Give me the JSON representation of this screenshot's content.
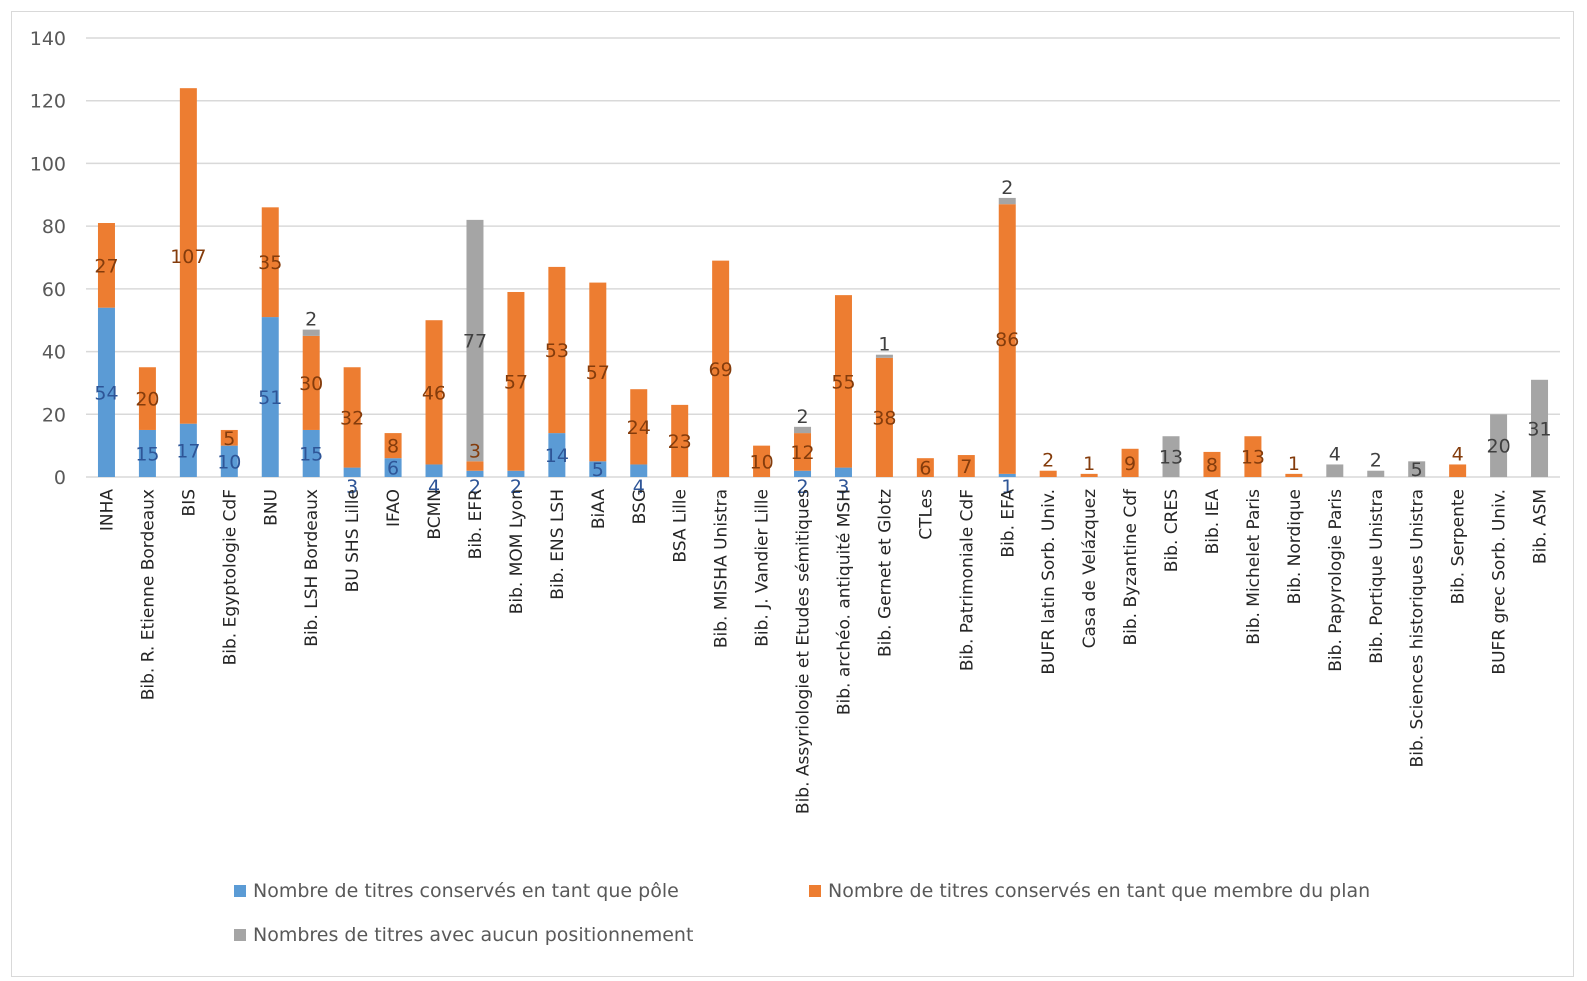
{
  "chart_data": {
    "type": "bar",
    "stacked": true,
    "title": "",
    "xlabel": "",
    "ylabel": "",
    "ylim": [
      0,
      140
    ],
    "yticks": [
      0,
      20,
      40,
      60,
      80,
      100,
      120,
      140
    ],
    "ytick_labels": [
      "0",
      "20",
      "40",
      "60",
      "80",
      "100",
      "120",
      "140"
    ],
    "grid": true,
    "legend_position": "bottom",
    "categories": [
      "INHA",
      "Bib. R. Etienne Bordeaux",
      "BIS",
      "Bib. Egyptologie CdF",
      "BNU",
      "Bib. LSH Bordeaux",
      "BU SHS Lille",
      "IFAO",
      "BCMN",
      "Bib. EFR",
      "Bib. MOM Lyon",
      "Bib. ENS LSH",
      "BiAA",
      "BSG",
      "BSA Lille",
      "Bib. MISHA Unistra",
      "Bib. J. Vandier Lille",
      "Bib. Assyriologie et Etudes sémitiques",
      "Bib. archéo. antiquité MSH",
      "Bib. Gernet et Glotz",
      "CTLes",
      "Bib. Patrimoniale CdF",
      "Bib. EFA",
      "BUFR latin Sorb. Univ.",
      "Casa de Velázquez",
      "Bib. Byzantine Cdf",
      "Bib. CRES",
      "Bib. IEA",
      "Bib. Michelet Paris",
      "Bib. Nordique",
      "Bib. Papyrologie Paris",
      "Bib. Portique Unistra",
      "Bib. Sciences historiques Unistra",
      "Bib. Serpente",
      "BUFR grec Sorb. Univ.",
      "Bib. ASM"
    ],
    "series": [
      {
        "name": "Nombre de titres conservés en tant que pôle",
        "color": "#5b9bd5",
        "label_color": "#2e5597",
        "values": [
          54,
          15,
          17,
          10,
          51,
          15,
          3,
          6,
          4,
          2,
          2,
          14,
          5,
          4,
          0,
          0,
          0,
          2,
          3,
          0,
          0,
          0,
          1,
          0,
          0,
          0,
          0,
          0,
          0,
          0,
          0,
          0,
          0,
          0,
          0,
          0
        ],
        "labels": [
          "54",
          "15",
          "17",
          "10",
          "51",
          "15",
          "3",
          "6",
          "4",
          "2",
          "2",
          "14",
          "5",
          "4",
          "",
          "",
          "",
          "2",
          "3",
          "",
          "",
          "",
          "1",
          "",
          "",
          "",
          "",
          "",
          "",
          "",
          "",
          "",
          "",
          "",
          "",
          ""
        ]
      },
      {
        "name": "Nombre de titres conservés en tant que membre du plan",
        "color": "#ed7d31",
        "label_color": "#843c0c",
        "values": [
          27,
          20,
          107,
          5,
          35,
          30,
          32,
          8,
          46,
          3,
          57,
          53,
          57,
          24,
          23,
          69,
          10,
          12,
          55,
          38,
          6,
          7,
          86,
          2,
          1,
          9,
          0,
          8,
          13,
          1,
          0,
          0,
          0,
          4,
          0,
          0
        ],
        "labels": [
          "27",
          "20",
          "107",
          "5",
          "35",
          "30",
          "32",
          "8",
          "46",
          "3",
          "57",
          "53",
          "57",
          "24",
          "23",
          "69",
          "10",
          "12",
          "55",
          "38",
          "6",
          "7",
          "86",
          "2",
          "1",
          "9",
          "",
          "8",
          "13",
          "1",
          "",
          "",
          "",
          "4",
          "",
          ""
        ]
      },
      {
        "name": "Nombres de titres avec aucun positionnement",
        "color": "#a5a5a5",
        "label_color": "#404040",
        "values": [
          0,
          0,
          0,
          0,
          0,
          2,
          0,
          0,
          0,
          77,
          0,
          0,
          0,
          0,
          0,
          0,
          0,
          2,
          0,
          1,
          0,
          0,
          2,
          0,
          0,
          0,
          13,
          0,
          0,
          0,
          4,
          2,
          5,
          0,
          20,
          31
        ],
        "labels": [
          "",
          "",
          "",
          "",
          "",
          "2",
          "",
          "",
          "",
          "77",
          "",
          "",
          "",
          "",
          "",
          "",
          "",
          "2",
          "",
          "1",
          "",
          "",
          "2",
          "",
          "",
          "",
          "13",
          "",
          "",
          "",
          "4",
          "2",
          "5",
          "",
          "20",
          "31"
        ]
      }
    ]
  }
}
